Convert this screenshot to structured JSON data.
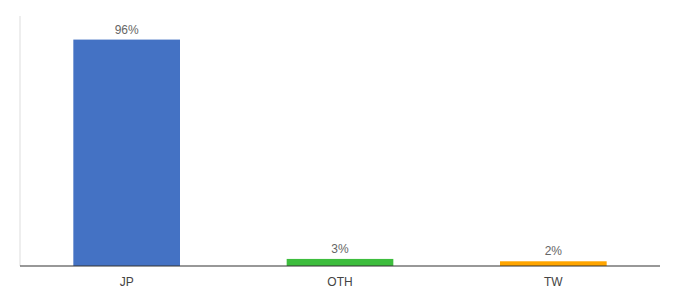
{
  "chart_data": {
    "type": "bar",
    "categories": [
      "JP",
      "OTH",
      "TW"
    ],
    "values": [
      96,
      3,
      2
    ],
    "value_labels": [
      "96%",
      "3%",
      "2%"
    ],
    "colors": [
      "#4472C4",
      "#3DBD3D",
      "#FFA500"
    ],
    "ylim": [
      0,
      106
    ],
    "data_labels": true,
    "tick_labels": "x",
    "grid": false
  }
}
